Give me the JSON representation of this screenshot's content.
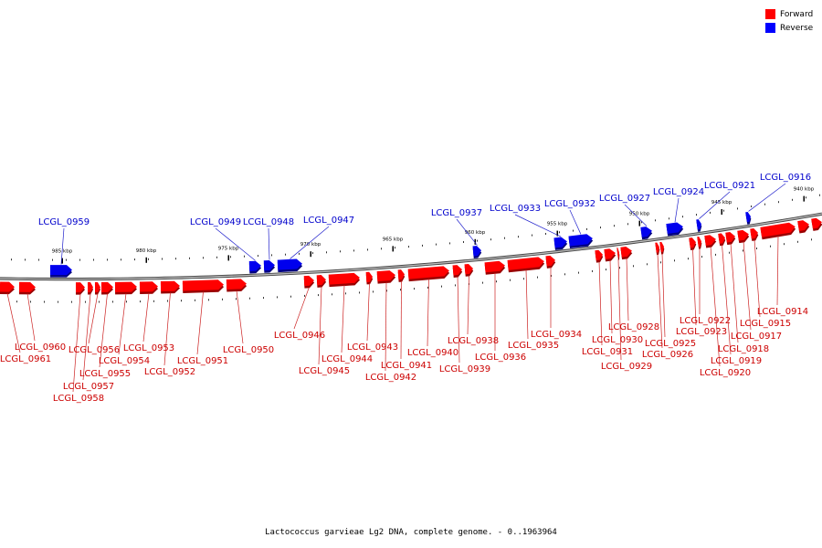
{
  "legend": {
    "forward_label": "Forward",
    "reverse_label": "Reverse",
    "forward_color": "#ff0000",
    "reverse_color": "#0000ff"
  },
  "caption": "Lactococcus garvieae Lg2 DNA, complete genome. - 0..1963964",
  "colors": {
    "backbone": "#888888",
    "forward_label": "#cc0000",
    "reverse_label": "#0000cc",
    "tick": "#000000"
  },
  "scale": {
    "ticks": [
      "985 kbp",
      "980 kbp",
      "975 kbp",
      "970 kbp",
      "965 kbp",
      "960 kbp",
      "955 kbp",
      "950 kbp",
      "945 kbp",
      "940 kbp"
    ]
  },
  "genes": {
    "reverse": [
      "LCGL_0959",
      "LCGL_0949",
      "LCGL_0948",
      "LCGL_0947",
      "LCGL_0937",
      "LCGL_0933",
      "LCGL_0932",
      "LCGL_0927",
      "LCGL_0924",
      "LCGL_0921",
      "LCGL_0916"
    ],
    "forward": [
      "LCGL_0961",
      "LCGL_0960",
      "LCGL_0958",
      "LCGL_0957",
      "LCGL_0956",
      "LCGL_0955",
      "LCGL_0954",
      "LCGL_0953",
      "LCGL_0952",
      "LCGL_0951",
      "LCGL_0950",
      "LCGL_0946",
      "LCGL_0945",
      "LCGL_0944",
      "LCGL_0943",
      "LCGL_0942",
      "LCGL_0941",
      "LCGL_0940",
      "LCGL_0939",
      "LCGL_0938",
      "LCGL_0936",
      "LCGL_0935",
      "LCGL_0934",
      "LCGL_0931",
      "LCGL_0930",
      "LCGL_0929",
      "LCGL_0928",
      "LCGL_0926",
      "LCGL_0925",
      "LCGL_0923",
      "LCGL_0922",
      "LCGL_0920",
      "LCGL_0919",
      "LCGL_0918",
      "LCGL_0917",
      "LCGL_0915",
      "LCGL_0914"
    ]
  }
}
